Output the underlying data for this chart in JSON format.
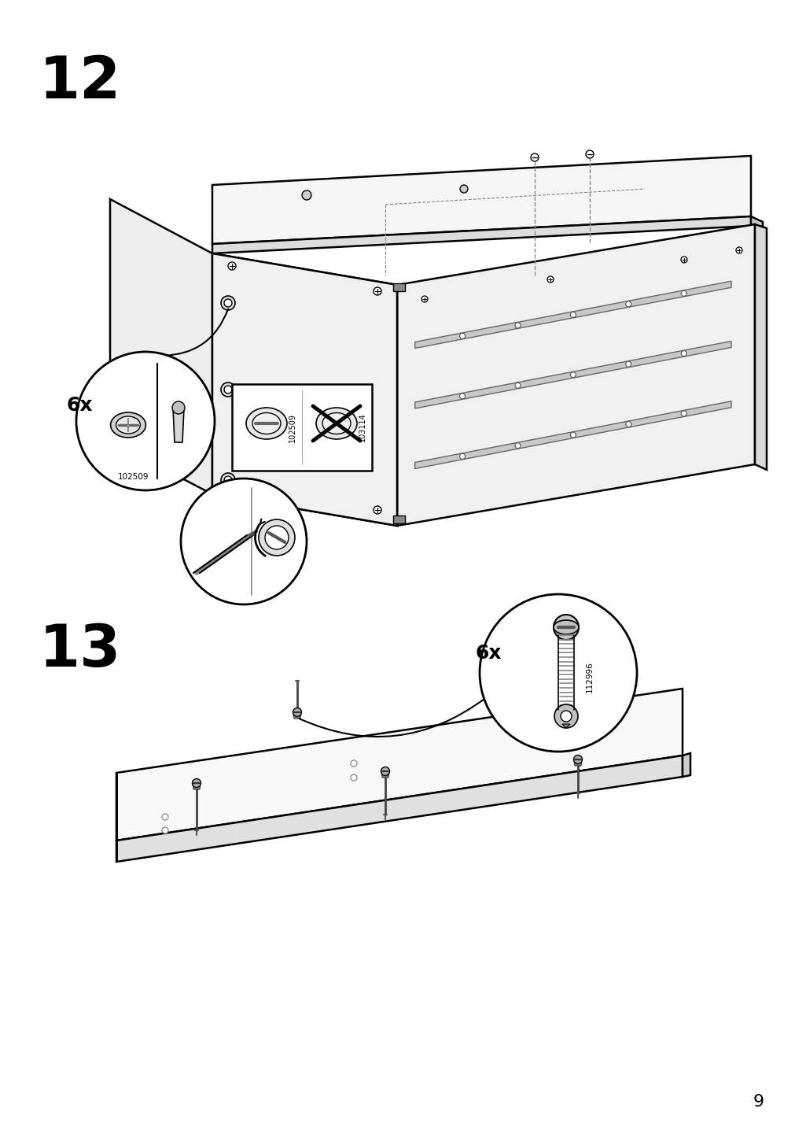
{
  "page_number": "9",
  "step_12_label": "12",
  "step_13_label": "13",
  "bg_color": "#ffffff",
  "line_color": "#000000",
  "count_6x_label": "6x",
  "part_102509": "102509",
  "part_103114": "103114",
  "part_112996": "112996",
  "fig_width": 10.12,
  "fig_height": 14.32,
  "dpi": 100
}
